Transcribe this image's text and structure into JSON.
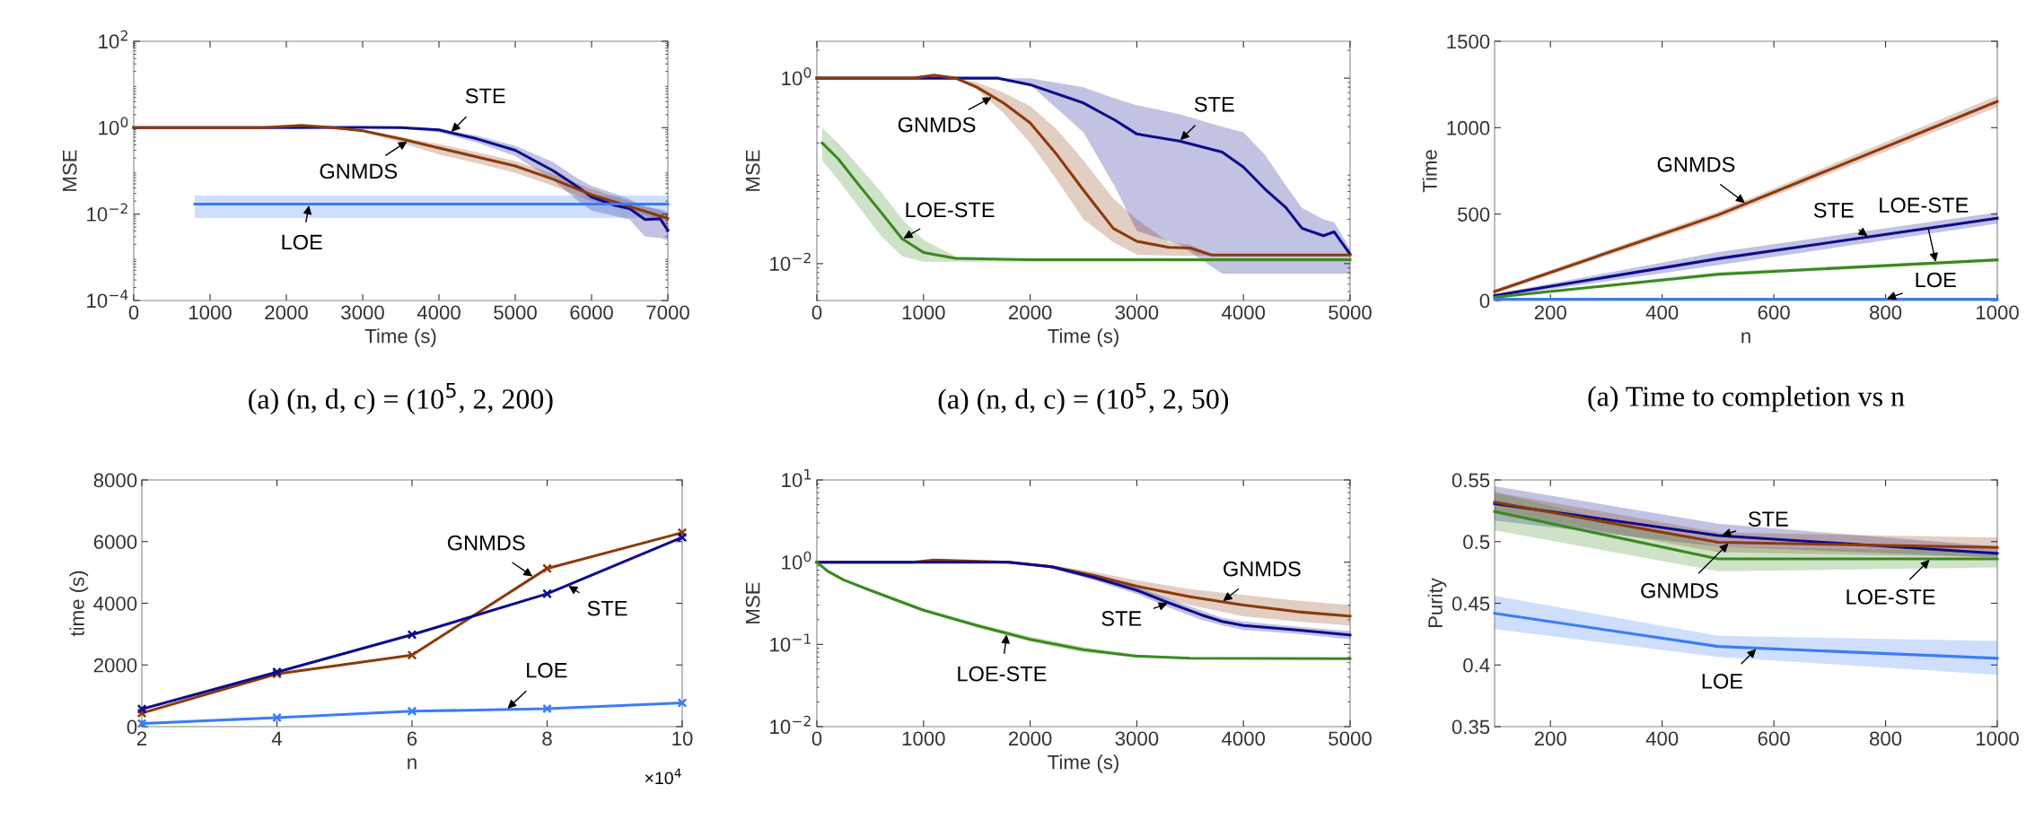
{
  "chart_data": [
    {
      "type": "line",
      "xlabel": "Time (s)",
      "ylabel": "MSE",
      "log": "y",
      "xlim": [
        0,
        7000
      ],
      "xticks": [
        0,
        1000,
        2000,
        3000,
        4000,
        5000,
        6000,
        7000
      ],
      "ylim": [
        0.0001,
        100
      ],
      "yticks": [
        {
          "value": 0.0001,
          "label": "10$^{−4}$"
        },
        {
          "value": 0.01,
          "label": "10$^{−2}$"
        },
        {
          "value": 1,
          "label": "10$^{0}$"
        },
        {
          "value": 100,
          "label": "10$^{2}$"
        }
      ],
      "annotations": [
        "(a) (n, d, c) = (10$^{5}$, 2, 200)"
      ],
      "series": [
        {
          "name": "STE",
          "color": "#0c0c8c",
          "x": [
            0,
            1000,
            2000,
            3000,
            3500,
            4000,
            4500,
            5000,
            5500,
            5800,
            6000,
            6300,
            6500,
            6700,
            6900,
            7000
          ],
          "values": [
            1,
            1,
            1,
            1.02,
            1,
            0.89,
            0.55,
            0.3,
            0.1,
            0.045,
            0.025,
            0.016,
            0.0135,
            0.0075,
            0.0078,
            0.0042
          ],
          "lower": [
            1,
            1,
            1,
            1.02,
            0.95,
            0.78,
            0.45,
            0.22,
            0.06,
            0.022,
            0.012,
            0.009,
            0.0075,
            0.003,
            0.0028,
            0.0025
          ],
          "upper": [
            1,
            1,
            1,
            1.02,
            1.05,
            0.95,
            0.65,
            0.38,
            0.16,
            0.07,
            0.045,
            0.03,
            0.022,
            0.015,
            0.013,
            0.011
          ]
        },
        {
          "name": "GNMDS",
          "color": "#8c3a0c",
          "x": [
            0,
            1000,
            1700,
            2200,
            2600,
            3000,
            3500,
            4000,
            4500,
            5000,
            5500,
            6000,
            6500,
            7000
          ],
          "values": [
            1,
            1,
            1,
            1.13,
            1,
            0.85,
            0.55,
            0.34,
            0.21,
            0.13,
            0.064,
            0.028,
            0.015,
            0.0079
          ],
          "lower": [
            1,
            1,
            1,
            1.13,
            1,
            0.8,
            0.45,
            0.24,
            0.15,
            0.09,
            0.045,
            0.02,
            0.012,
            0.006
          ],
          "upper": [
            1,
            1,
            1,
            1.13,
            1,
            0.9,
            0.6,
            0.42,
            0.27,
            0.17,
            0.085,
            0.038,
            0.02,
            0.0105
          ]
        },
        {
          "name": "LOE",
          "color": "#3a7df5",
          "x": [
            800,
            7000
          ],
          "values": [
            0.017,
            0.017
          ],
          "lower": [
            0.0081,
            0.0081
          ],
          "upper": [
            0.027,
            0.027
          ]
        }
      ]
    },
    {
      "type": "line",
      "xlabel": "Time (s)",
      "ylabel": "MSE",
      "log": "y",
      "xlim": [
        0,
        5000
      ],
      "xticks": [
        0,
        1000,
        2000,
        3000,
        4000,
        5000
      ],
      "ylim": [
        0.004,
        2.5
      ],
      "yticks": [
        {
          "value": 0.01,
          "label": "10$^{−2}$"
        },
        {
          "value": 1,
          "label": "10$^{0}$"
        }
      ],
      "annotations": [
        "(a) (n, d, c) = (10$^{5}$, 2, 50)"
      ],
      "series": [
        {
          "name": "STE",
          "color": "#0c0c8c",
          "x": [
            0,
            1000,
            1700,
            2000,
            2500,
            2800,
            3000,
            3400,
            3800,
            4000,
            4200,
            4400,
            4550,
            4750,
            4850,
            5000
          ],
          "values": [
            1,
            1,
            1,
            0.85,
            0.54,
            0.35,
            0.25,
            0.21,
            0.16,
            0.11,
            0.064,
            0.04,
            0.024,
            0.02,
            0.022,
            0.0126
          ],
          "lower": [
            1,
            1,
            1,
            0.85,
            0.26,
            0.066,
            0.0225,
            0.016,
            0.0078,
            0.0078,
            0.0078,
            0.0078,
            0.0078,
            0.0078,
            0.0078,
            0.0078
          ],
          "upper": [
            1,
            1,
            1,
            1,
            0.8,
            0.6,
            0.51,
            0.41,
            0.3,
            0.26,
            0.15,
            0.069,
            0.04,
            0.03,
            0.028,
            0.0145
          ]
        },
        {
          "name": "GNMDS",
          "color": "#8c3a0c",
          "x": [
            0,
            900,
            1100,
            1300,
            1500,
            1750,
            2000,
            2250,
            2500,
            2780,
            3000,
            3300,
            3500,
            3700,
            5000
          ],
          "values": [
            1,
            1,
            1.08,
            1,
            0.8,
            0.54,
            0.33,
            0.15,
            0.062,
            0.024,
            0.0174,
            0.015,
            0.0147,
            0.0124,
            0.0124
          ],
          "lower": [
            1,
            1,
            1.08,
            1,
            0.75,
            0.42,
            0.2,
            0.08,
            0.03,
            0.017,
            0.0125,
            0.0122,
            0.0122,
            0.0122,
            0.0122
          ],
          "upper": [
            1,
            1,
            1.08,
            1,
            0.9,
            0.7,
            0.5,
            0.28,
            0.13,
            0.05,
            0.03,
            0.017,
            0.016,
            0.0126,
            0.0126
          ]
        },
        {
          "name": "LOE-STE",
          "color": "#3a8a1e",
          "x": [
            50,
            200,
            400,
            600,
            800,
            1000,
            1300,
            2000,
            5000
          ],
          "values": [
            0.2,
            0.135,
            0.069,
            0.036,
            0.0185,
            0.0132,
            0.0114,
            0.011,
            0.011
          ],
          "lower": [
            0.13,
            0.08,
            0.04,
            0.02,
            0.012,
            0.0105,
            0.0105,
            0.0105,
            0.0105
          ],
          "upper": [
            0.29,
            0.2,
            0.11,
            0.06,
            0.03,
            0.018,
            0.012,
            0.011,
            0.011
          ]
        }
      ]
    },
    {
      "type": "line",
      "xlabel": "n",
      "ylabel": "Time",
      "xlim": [
        100,
        1000
      ],
      "xticks": [
        200,
        400,
        600,
        800,
        1000
      ],
      "ylim": [
        0,
        1500
      ],
      "yticks": [
        0,
        500,
        1000,
        1500
      ],
      "annotations": [
        "(a) Time to completion vs n"
      ],
      "series": [
        {
          "name": "GNMDS",
          "color": "#8c3a0c",
          "x": [
            100,
            500,
            1000
          ],
          "values": [
            52,
            495,
            1152
          ],
          "lower": [
            40,
            475,
            1120
          ],
          "upper": [
            64,
            515,
            1185
          ]
        },
        {
          "name": "STE",
          "color": "#0c0c8c",
          "x": [
            100,
            500,
            1000
          ],
          "values": [
            28,
            242,
            476
          ],
          "lower": [
            18,
            205,
            445
          ],
          "upper": [
            38,
            280,
            510
          ]
        },
        {
          "name": "LOE-STE",
          "color": "#3a8a1e",
          "x": [
            100,
            500,
            1000
          ],
          "values": [
            19,
            152,
            235
          ],
          "lower": [
            14,
            140,
            228
          ],
          "upper": [
            24,
            165,
            242
          ]
        },
        {
          "name": "LOE",
          "color": "#3a7df5",
          "x": [
            100,
            500,
            1000
          ],
          "values": [
            8,
            8,
            8
          ]
        }
      ]
    },
    {
      "type": "line",
      "xlabel": "n",
      "ylabel": "time (s)",
      "marker": "cross",
      "xlim": [
        2,
        10
      ],
      "xticks": [
        2,
        4,
        6,
        8,
        10
      ],
      "ylim": [
        0,
        8000
      ],
      "yticks": [
        0,
        2000,
        4000,
        6000,
        8000
      ],
      "annotations": [
        "×10$^{4}$"
      ],
      "series": [
        {
          "name": "GNMDS",
          "color": "#8c3a0c",
          "x": [
            2,
            4,
            6,
            8,
            10
          ],
          "values": [
            440,
            1710,
            2320,
            5130,
            6290
          ]
        },
        {
          "name": "STE",
          "color": "#0c0c8c",
          "x": [
            2,
            4,
            6,
            8,
            10
          ],
          "values": [
            570,
            1770,
            2980,
            4310,
            6140
          ]
        },
        {
          "name": "LOE",
          "color": "#3a7df5",
          "x": [
            2,
            4,
            6,
            8,
            10
          ],
          "values": [
            100,
            290,
            500,
            580,
            770
          ]
        }
      ]
    },
    {
      "type": "line",
      "xlabel": "Time (s)",
      "ylabel": "MSE",
      "log": "y",
      "xlim": [
        0,
        5000
      ],
      "xticks": [
        0,
        1000,
        2000,
        3000,
        4000,
        5000
      ],
      "ylim": [
        0.01,
        10
      ],
      "yticks": [
        {
          "value": 0.01,
          "label": "10$^{−2}$"
        },
        {
          "value": 0.1,
          "label": "10$^{−1}$"
        },
        {
          "value": 1,
          "label": "10$^{0}$"
        },
        {
          "value": 10,
          "label": "10$^{1}$"
        }
      ],
      "series": [
        {
          "name": "GNMDS",
          "color": "#8c3a0c",
          "x": [
            0,
            900,
            1100,
            1800,
            2200,
            2600,
            3000,
            3500,
            4000,
            4500,
            5000
          ],
          "values": [
            1,
            1,
            1.06,
            1,
            0.88,
            0.69,
            0.51,
            0.38,
            0.3,
            0.25,
            0.22
          ],
          "lower": [
            1,
            1,
            1.06,
            1,
            0.84,
            0.62,
            0.44,
            0.3,
            0.22,
            0.19,
            0.17
          ],
          "upper": [
            1,
            1,
            1.06,
            1,
            0.92,
            0.76,
            0.6,
            0.47,
            0.4,
            0.34,
            0.3
          ]
        },
        {
          "name": "STE",
          "color": "#0c0c8c",
          "x": [
            0,
            1800,
            2200,
            2600,
            3000,
            3300,
            3600,
            3800,
            4000,
            4500,
            5000
          ],
          "values": [
            1,
            1,
            0.88,
            0.65,
            0.455,
            0.32,
            0.23,
            0.19,
            0.17,
            0.15,
            0.13
          ],
          "lower": [
            1,
            1,
            0.84,
            0.6,
            0.41,
            0.28,
            0.2,
            0.17,
            0.15,
            0.135,
            0.115
          ],
          "upper": [
            1,
            1,
            0.92,
            0.7,
            0.5,
            0.36,
            0.26,
            0.21,
            0.19,
            0.165,
            0.145
          ]
        },
        {
          "name": "LOE-STE",
          "color": "#3a8a1e",
          "x": [
            0,
            100,
            250,
            500,
            1000,
            1500,
            2000,
            2500,
            3000,
            3500,
            5000
          ],
          "values": [
            1,
            0.78,
            0.61,
            0.455,
            0.26,
            0.17,
            0.115,
            0.086,
            0.072,
            0.068,
            0.067
          ],
          "lower": [
            1,
            0.76,
            0.59,
            0.44,
            0.25,
            0.16,
            0.108,
            0.08,
            0.069,
            0.067,
            0.066
          ],
          "upper": [
            1,
            0.8,
            0.63,
            0.47,
            0.275,
            0.18,
            0.125,
            0.093,
            0.075,
            0.069,
            0.068
          ]
        }
      ]
    },
    {
      "type": "line",
      "ylabel": "Purity",
      "xlim": [
        100,
        1000
      ],
      "xticks": [
        200,
        400,
        600,
        800,
        1000
      ],
      "ylim": [
        0.35,
        0.55
      ],
      "yticks": [
        0.35,
        0.4,
        0.45,
        0.5,
        0.55
      ],
      "series": [
        {
          "name": "STE",
          "color": "#0c0c8c",
          "x": [
            100,
            500,
            1000
          ],
          "values": [
            0.5308,
            0.5049,
            0.4905
          ],
          "lower": [
            0.517,
            0.496,
            0.487
          ],
          "upper": [
            0.5449,
            0.5145,
            0.496
          ]
        },
        {
          "name": "GNMDS",
          "color": "#8c3a0c",
          "x": [
            100,
            500,
            1000
          ],
          "values": [
            0.532,
            0.4994,
            0.4953
          ],
          "lower": [
            0.524,
            0.4914,
            0.4873
          ],
          "upper": [
            0.54,
            0.5074,
            0.5033
          ]
        },
        {
          "name": "LOE-STE",
          "color": "#3a8a1e",
          "x": [
            100,
            500,
            1000
          ],
          "values": [
            0.5244,
            0.486,
            0.486
          ],
          "lower": [
            0.509,
            0.476,
            0.479
          ],
          "upper": [
            0.54,
            0.496,
            0.492
          ]
        },
        {
          "name": "LOE",
          "color": "#3a7df5",
          "x": [
            100,
            500,
            1000
          ],
          "values": [
            0.4418,
            0.415,
            0.4054
          ],
          "lower": [
            0.429,
            0.4066,
            0.392
          ],
          "upper": [
            0.456,
            0.4236,
            0.4194
          ]
        }
      ]
    }
  ]
}
